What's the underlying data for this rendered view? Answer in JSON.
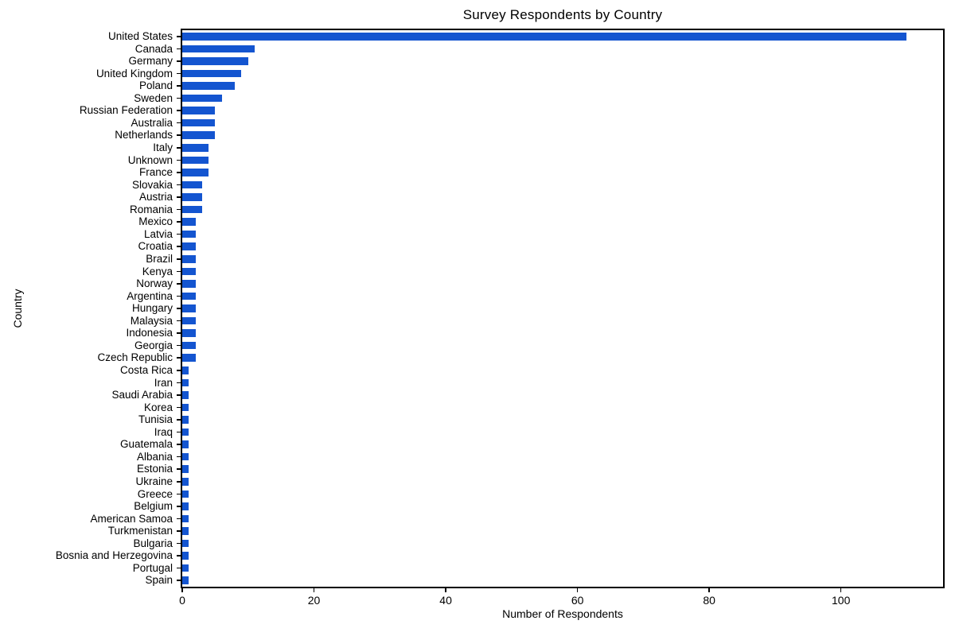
{
  "chart_data": {
    "type": "bar",
    "orientation": "horizontal",
    "title": "Survey Respondents by Country",
    "xlabel": "Number of Respondents",
    "ylabel": "Country",
    "categories": [
      "United States",
      "Canada",
      "Germany",
      "United Kingdom",
      "Poland",
      "Sweden",
      "Russian Federation",
      "Australia",
      "Netherlands",
      "Italy",
      "Unknown",
      "France",
      "Slovakia",
      "Austria",
      "Romania",
      "Mexico",
      "Latvia",
      "Croatia",
      "Brazil",
      "Kenya",
      "Norway",
      "Argentina",
      "Hungary",
      "Malaysia",
      "Indonesia",
      "Georgia",
      "Czech Republic",
      "Costa Rica",
      "Iran",
      "Saudi Arabia",
      "Korea",
      "Tunisia",
      "Iraq",
      "Guatemala",
      "Albania",
      "Estonia",
      "Ukraine",
      "Greece",
      "Belgium",
      "American Samoa",
      "Turkmenistan",
      "Bulgaria",
      "Bosnia and Herzegovina",
      "Portugal",
      "Spain"
    ],
    "values": [
      110,
      11,
      10,
      9,
      8,
      6,
      5,
      5,
      5,
      4,
      4,
      4,
      3,
      3,
      3,
      2,
      2,
      2,
      2,
      2,
      2,
      2,
      2,
      2,
      2,
      2,
      2,
      1,
      1,
      1,
      1,
      1,
      1,
      1,
      1,
      1,
      1,
      1,
      1,
      1,
      1,
      1,
      1,
      1,
      1
    ],
    "xticks": [
      0,
      20,
      40,
      60,
      80,
      100
    ],
    "xlim": [
      0,
      115.5
    ],
    "bar_color": "#1455d0",
    "axis_color": "#000000",
    "grid": false,
    "legend": "none"
  }
}
